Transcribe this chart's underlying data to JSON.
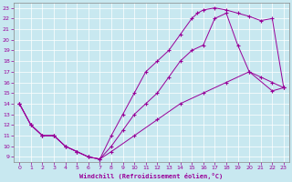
{
  "xlabel": "Windchill (Refroidissement éolien,°C)",
  "bg_color": "#c8e8f0",
  "line_color": "#990099",
  "xlim": [
    -0.5,
    23.5
  ],
  "ylim": [
    8.5,
    23.5
  ],
  "xticks": [
    0,
    1,
    2,
    3,
    4,
    5,
    6,
    7,
    8,
    9,
    10,
    11,
    12,
    13,
    14,
    15,
    16,
    17,
    18,
    19,
    20,
    21,
    22,
    23
  ],
  "yticks": [
    9,
    10,
    11,
    12,
    13,
    14,
    15,
    16,
    17,
    18,
    19,
    20,
    21,
    22,
    23
  ],
  "upper_x": [
    0,
    1,
    2,
    3,
    4,
    5,
    6,
    7,
    8,
    9,
    10,
    11,
    12,
    13,
    14,
    15,
    15.5,
    16,
    17,
    18,
    19,
    20,
    21,
    22,
    23
  ],
  "upper_y": [
    14,
    12,
    11,
    11,
    10,
    9.5,
    9,
    8.8,
    11,
    13,
    15,
    17,
    18,
    19,
    20.5,
    22,
    22.5,
    22.8,
    23.0,
    22.8,
    22.5,
    22.2,
    21.8,
    22,
    15.5
  ],
  "middle_x": [
    0,
    1,
    2,
    3,
    4,
    5,
    6,
    7,
    8,
    9,
    10,
    11,
    12,
    13,
    14,
    15,
    16,
    17,
    18,
    19,
    20,
    21,
    22,
    23
  ],
  "middle_y": [
    14,
    12,
    11,
    11,
    10,
    9.5,
    9,
    8.8,
    10,
    11.5,
    13,
    14,
    15,
    16.5,
    18,
    19,
    19.5,
    22,
    22.5,
    19.5,
    17,
    16.5,
    16,
    15.5
  ],
  "lower_x": [
    0,
    1,
    2,
    3,
    4,
    5,
    6,
    7,
    8,
    10,
    12,
    14,
    16,
    18,
    20,
    22,
    23
  ],
  "lower_y": [
    14,
    12,
    11,
    11,
    10,
    9.5,
    9,
    8.8,
    9.5,
    11,
    12.5,
    14,
    15,
    16,
    17,
    15.2,
    15.5
  ]
}
